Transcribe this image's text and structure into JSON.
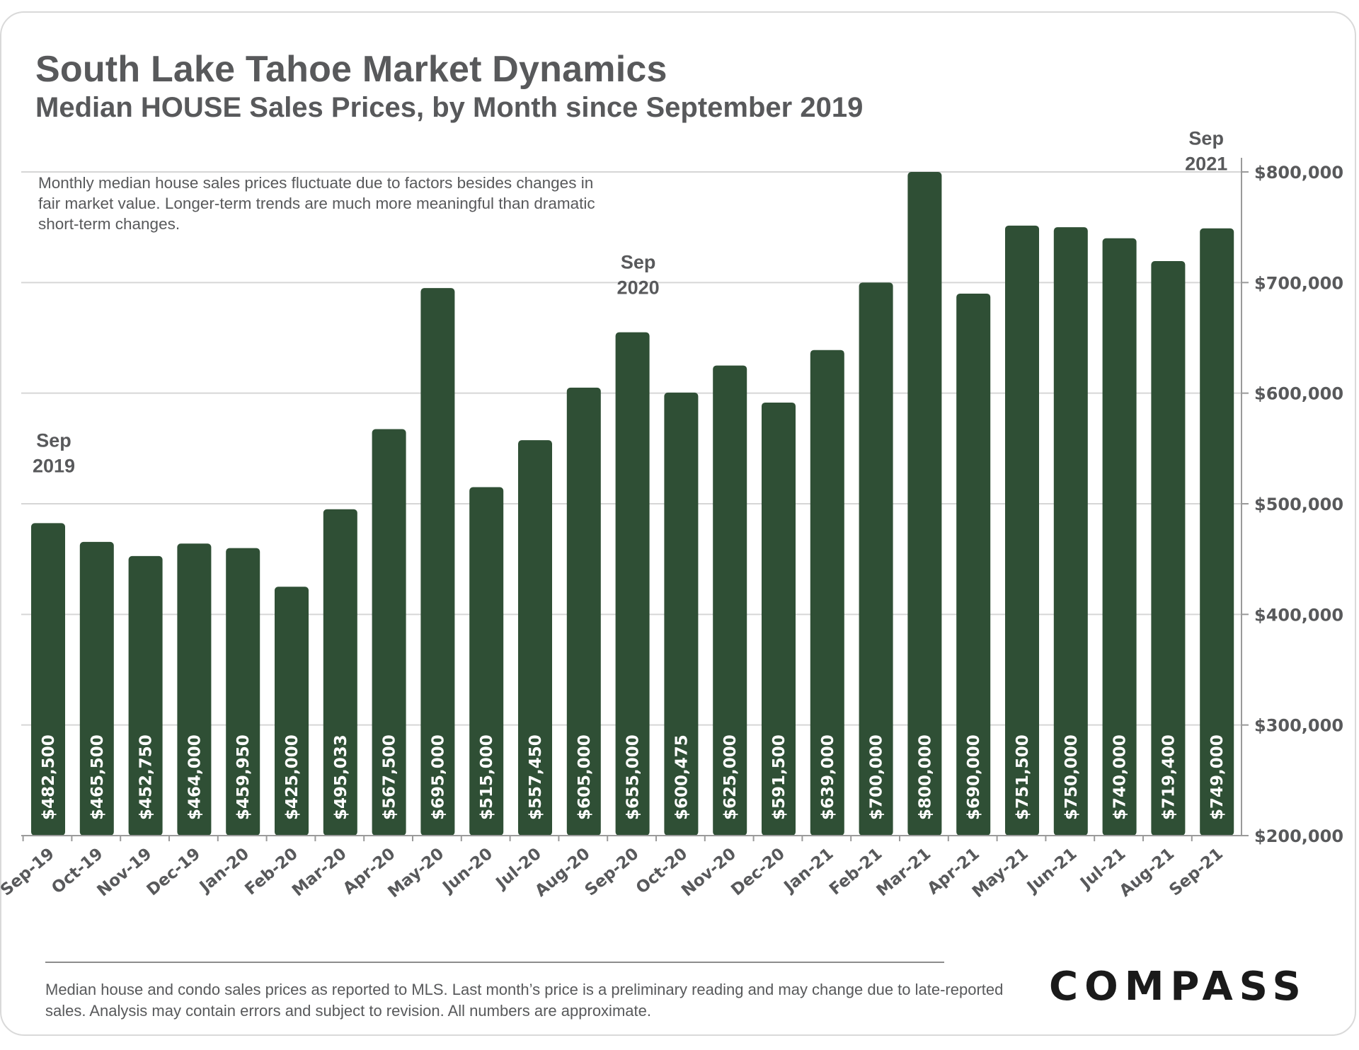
{
  "header": {
    "title": "South Lake Tahoe Market Dynamics",
    "subtitle": "Median HOUSE Sales Prices, by Month since September 2019"
  },
  "note": "Monthly median house sales prices fluctuate due to factors besides changes in fair market value. Longer-term trends are much more meaningful than dramatic short-term changes.",
  "footer": {
    "disclaimer": "Median house and condo sales prices as reported to MLS. Last month’s price is a preliminary reading and may change due to late-reported sales. Analysis may contain errors and subject to revision. All numbers are approximate.",
    "brand": "COMPASS"
  },
  "colors": {
    "bar": "#2f4f35",
    "grid": "#d6d6d6",
    "text": "#58595b",
    "bar_label": "#ffffff"
  },
  "chart_data": {
    "type": "bar",
    "title": "Median HOUSE Sales Prices, by Month since September 2019",
    "categories": [
      "Sep-19",
      "Oct-19",
      "Nov-19",
      "Dec-19",
      "Jan-20",
      "Feb-20",
      "Mar-20",
      "Apr-20",
      "May-20",
      "Jun-20",
      "Jul-20",
      "Aug-20",
      "Sep-20",
      "Oct-20",
      "Nov-20",
      "Dec-20",
      "Jan-21",
      "Feb-21",
      "Mar-21",
      "Apr-21",
      "May-21",
      "Jun-21",
      "Jul-21",
      "Aug-21",
      "Sep-21"
    ],
    "values": [
      482500,
      465500,
      452750,
      464000,
      459950,
      425000,
      495033,
      567500,
      695000,
      515000,
      557450,
      605000,
      655000,
      600475,
      625000,
      591500,
      639000,
      700000,
      800000,
      690000,
      751500,
      750000,
      740000,
      719400,
      749000
    ],
    "value_labels": [
      "$482,500",
      "$465,500",
      "$452,750",
      "$464,000",
      "$459,950",
      "$425,000",
      "$495,033",
      "$567,500",
      "$695,000",
      "$515,000",
      "$557,450",
      "$605,000",
      "$655,000",
      "$600,475",
      "$625,000",
      "$591,500",
      "$639,000",
      "$700,000",
      "$800,000",
      "$690,000",
      "$751,500",
      "$750,000",
      "$740,000",
      "$719,400",
      "$749,000"
    ],
    "ylim": [
      200000,
      800000
    ],
    "y_ticks": [
      200000,
      300000,
      400000,
      500000,
      600000,
      700000,
      800000
    ],
    "y_tick_labels": [
      "$200,000",
      "$300,000",
      "$400,000",
      "$500,000",
      "$600,000",
      "$700,000",
      "$800,000"
    ],
    "y_axis_side": "right",
    "grid": true,
    "legend": "none",
    "annotations": [
      {
        "category": "Sep-19",
        "line1": "Sep",
        "line2": "2019"
      },
      {
        "category": "Sep-20",
        "line1": "Sep",
        "line2": "2020"
      },
      {
        "category": "Sep-21",
        "line1": "Sep",
        "line2": "2021"
      }
    ]
  }
}
